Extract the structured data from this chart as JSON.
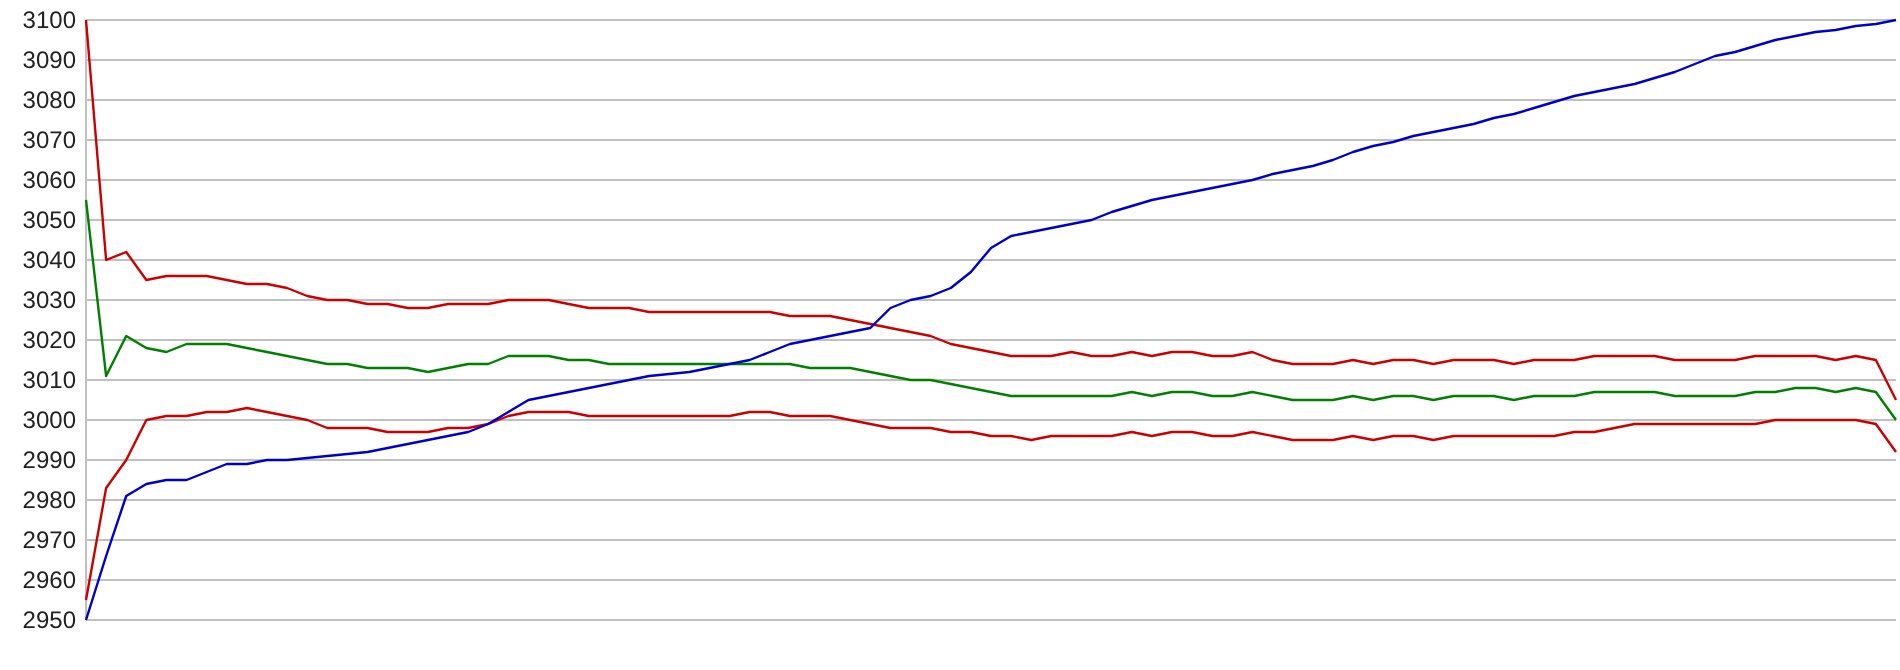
{
  "chart_data": {
    "type": "line",
    "categories": [
      null,
      null,
      null,
      null,
      null,
      null,
      null,
      null,
      null,
      null,
      null,
      null,
      null,
      null,
      null,
      null,
      null,
      null,
      null,
      null,
      null,
      null,
      null,
      null,
      null,
      null,
      null,
      null,
      null,
      null,
      null,
      null,
      null,
      null,
      null,
      null,
      null,
      null,
      null,
      null,
      null,
      null,
      null,
      null,
      null,
      null,
      null,
      null,
      null,
      null,
      null,
      null,
      null,
      null,
      null,
      null,
      null,
      null,
      null,
      null,
      null,
      null,
      null,
      null,
      null,
      null,
      null,
      null,
      null,
      null,
      null,
      null,
      null,
      null,
      null,
      null,
      null,
      null,
      null,
      null,
      null,
      null,
      null,
      null,
      null,
      null,
      null,
      null,
      null,
      null,
      null
    ],
    "series": [
      {
        "color": "#cc0000",
        "values": [
          3100,
          3040,
          3042,
          3035,
          3036,
          3036,
          3036,
          3035,
          3034,
          3034,
          3033,
          3031,
          3030,
          3030,
          3029,
          3029,
          3028,
          3028,
          3029,
          3029,
          3029,
          3030,
          3030,
          3030,
          3029,
          3028,
          3028,
          3028,
          3027,
          3027,
          3027,
          3027,
          3027,
          3027,
          3027,
          3026,
          3026,
          3026,
          3025,
          3024,
          3023,
          3022,
          3021,
          3019,
          3018,
          3017,
          3016,
          3016,
          3016,
          3017,
          3016,
          3016,
          3017,
          3016,
          3017,
          3017,
          3016,
          3016,
          3017,
          3015,
          3014,
          3014,
          3014,
          3015,
          3014,
          3015,
          3015,
          3014,
          3015,
          3015,
          3015,
          3014,
          3015,
          3015,
          3015,
          3016,
          3016,
          3016,
          3016,
          3015,
          3015,
          3015,
          3015,
          3016,
          3016,
          3016,
          3016,
          3015,
          3016,
          3015,
          3005
        ]
      },
      {
        "color": "#008000",
        "values": [
          3055,
          3011,
          3021,
          3018,
          3017,
          3019,
          3019,
          3019,
          3018,
          3017,
          3016,
          3015,
          3014,
          3014,
          3013,
          3013,
          3013,
          3012,
          3013,
          3014,
          3014,
          3016,
          3016,
          3016,
          3015,
          3015,
          3014,
          3014,
          3014,
          3014,
          3014,
          3014,
          3014,
          3014,
          3014,
          3014,
          3013,
          3013,
          3013,
          3012,
          3011,
          3010,
          3010,
          3009,
          3008,
          3007,
          3006,
          3006,
          3006,
          3006,
          3006,
          3006,
          3007,
          3006,
          3007,
          3007,
          3006,
          3006,
          3007,
          3006,
          3005,
          3005,
          3005,
          3006,
          3005,
          3006,
          3006,
          3005,
          3006,
          3006,
          3006,
          3005,
          3006,
          3006,
          3006,
          3007,
          3007,
          3007,
          3007,
          3006,
          3006,
          3006,
          3006,
          3007,
          3007,
          3008,
          3008,
          3007,
          3008,
          3007,
          3000
        ]
      },
      {
        "color": "#cc0000",
        "values": [
          2955,
          2983,
          2990,
          3000,
          3001,
          3001,
          3002,
          3002,
          3003,
          3002,
          3001,
          3000,
          2998,
          2998,
          2998,
          2997,
          2997,
          2997,
          2998,
          2998,
          2999,
          3001,
          3002,
          3002,
          3002,
          3001,
          3001,
          3001,
          3001,
          3001,
          3001,
          3001,
          3001,
          3002,
          3002,
          3001,
          3001,
          3001,
          3000,
          2999,
          2998,
          2998,
          2998,
          2997,
          2997,
          2996,
          2996,
          2995,
          2996,
          2996,
          2996,
          2996,
          2997,
          2996,
          2997,
          2997,
          2996,
          2996,
          2997,
          2996,
          2995,
          2995,
          2995,
          2996,
          2995,
          2996,
          2996,
          2995,
          2996,
          2996,
          2996,
          2996,
          2996,
          2996,
          2997,
          2997,
          2998,
          2999,
          2999,
          2999,
          2999,
          2999,
          2999,
          2999,
          3000,
          3000,
          3000,
          3000,
          3000,
          2999,
          2992
        ]
      },
      {
        "color": "#0000cc",
        "values": [
          2950,
          2966,
          2981,
          2984,
          2985,
          2985,
          2987,
          2989,
          2989,
          2990,
          2990,
          2990.5,
          2991,
          2991.5,
          2992,
          2993,
          2994,
          2995,
          2996,
          2997,
          2999,
          3002,
          3005,
          3006,
          3007,
          3008,
          3009,
          3010,
          3011,
          3011.5,
          3012,
          3013,
          3014,
          3015,
          3017,
          3019,
          3020,
          3021,
          3022,
          3023,
          3028,
          3030,
          3031,
          3033,
          3037,
          3043,
          3046,
          3047,
          3048,
          3049,
          3050,
          3052,
          3053.5,
          3055,
          3056,
          3057,
          3058,
          3059,
          3060,
          3061.5,
          3062.5,
          3063.5,
          3065,
          3067,
          3068.5,
          3069.5,
          3071,
          3072,
          3073,
          3074,
          3075.5,
          3076.5,
          3078,
          3079.5,
          3081,
          3082,
          3083,
          3084,
          3085.5,
          3087,
          3089,
          3091,
          3092,
          3093.5,
          3095,
          3096,
          3097,
          3097.5,
          3098.5,
          3099,
          3100
        ]
      }
    ],
    "ylim": [
      2950,
      3100
    ],
    "yticks": [
      2950,
      2960,
      2970,
      2980,
      2990,
      3000,
      3010,
      3020,
      3030,
      3040,
      3050,
      3060,
      3070,
      3080,
      3090,
      3100
    ],
    "grid": "y",
    "marker": "none",
    "line_style": "solid",
    "tick_labels": "y"
  }
}
